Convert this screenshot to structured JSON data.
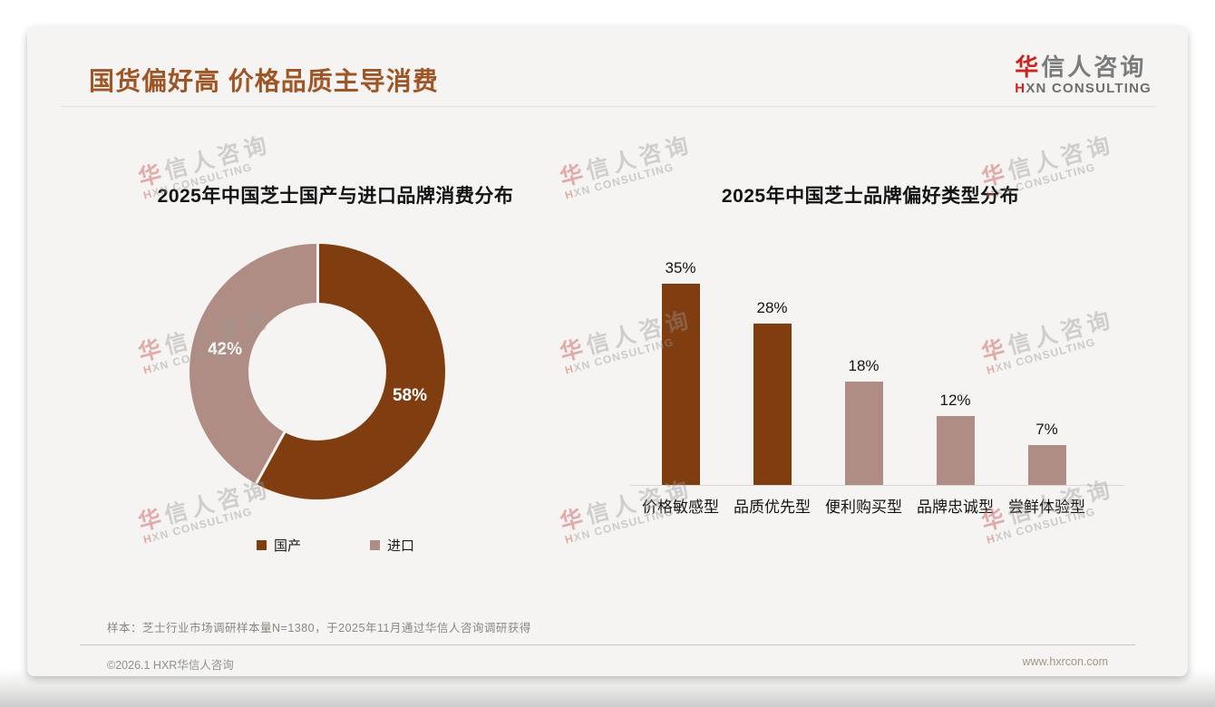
{
  "header": {
    "title": "国货偏好高 价格品质主导消费",
    "logo": {
      "cn_first": "华",
      "cn_rest": "信人咨询",
      "en_first": "H",
      "en_rest": "XN CONSULTING"
    }
  },
  "watermark": {
    "cn_first": "华",
    "cn_rest": "信人咨询",
    "en_first": "H",
    "en_rest": "XN CONSULTING"
  },
  "chart_data": [
    {
      "type": "pie",
      "subtype": "donut",
      "title": "2025年中国芝士国产与进口品牌消费分布",
      "labels": [
        "国产",
        "进口"
      ],
      "values": [
        58,
        42
      ],
      "data_labels": [
        "58%",
        "42%"
      ],
      "colors": [
        "#803e10",
        "#af8d84"
      ],
      "start_angle_deg": 0,
      "direction": "clockwise",
      "legend_position": "bottom"
    },
    {
      "type": "bar",
      "title": "2025年中国芝士品牌偏好类型分布",
      "categories": [
        "价格敏感型",
        "品质优先型",
        "便利购买型",
        "品牌忠诚型",
        "尝鲜体验型"
      ],
      "values": [
        35,
        28,
        18,
        12,
        7
      ],
      "value_labels": [
        "35%",
        "28%",
        "18%",
        "12%",
        "7%"
      ],
      "bar_colors": [
        "#803e10",
        "#803e10",
        "#af8d84",
        "#af8d84",
        "#af8d84"
      ],
      "xlabel": "",
      "ylabel": "",
      "ylim": [
        0,
        40
      ],
      "gridlines": false,
      "legend_position": "none"
    }
  ],
  "footnote": "样本：芝士行业市场调研样本量N=1380，于2025年11月通过华信人咨询调研获得",
  "footer": {
    "left": "©2026.1 HXR华信人咨询",
    "right": "www.hxrcon.com"
  }
}
